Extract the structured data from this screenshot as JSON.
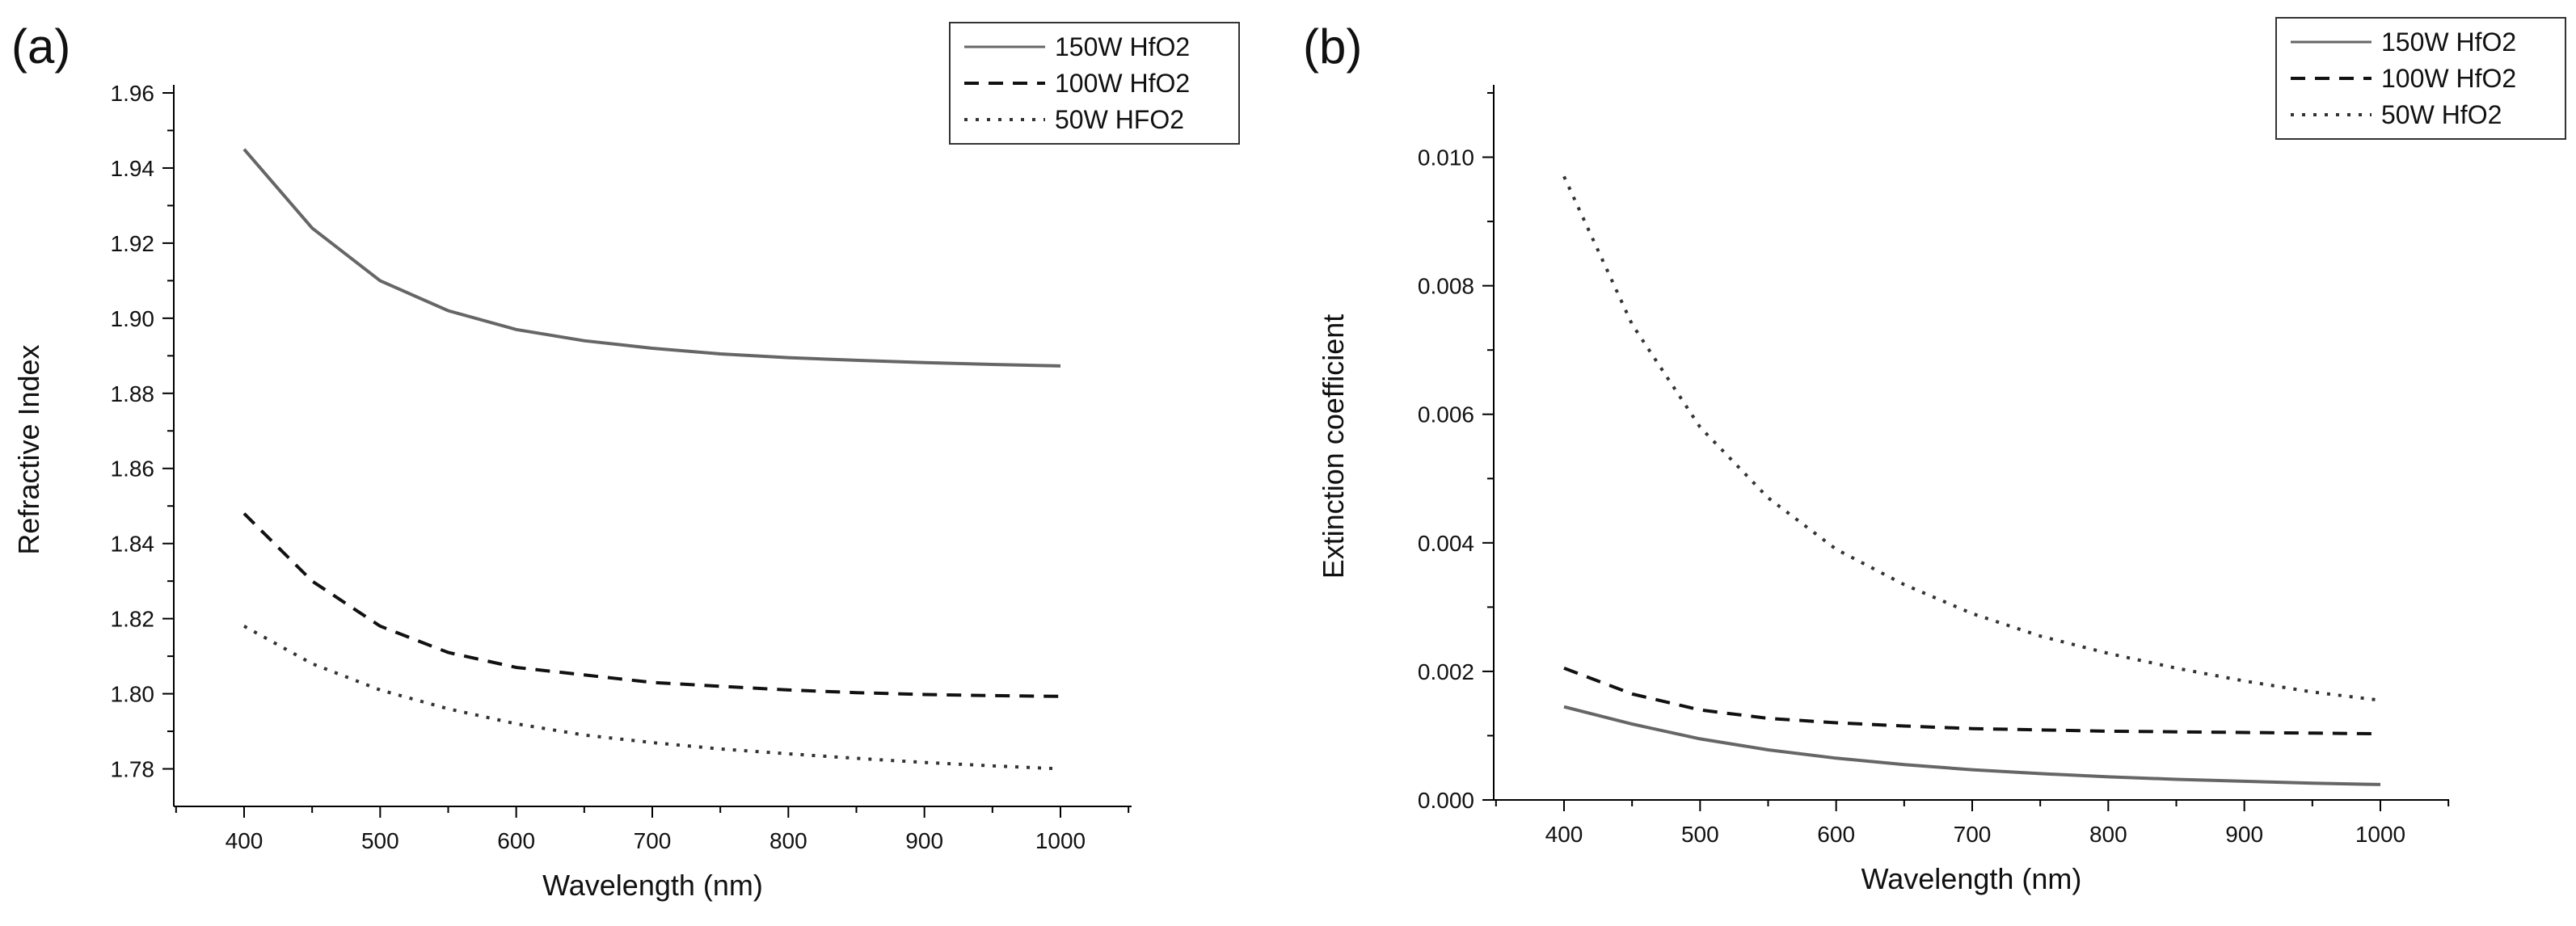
{
  "chart_data": [
    {
      "type": "line",
      "panel_label": "(a)",
      "xlabel": "Wavelength (nm)",
      "ylabel": "Refractive Index",
      "xlim": [
        350,
        1050
      ],
      "ylim": [
        1.77,
        1.96
      ],
      "xticks": [
        400,
        500,
        600,
        700,
        800,
        900,
        1000
      ],
      "xtick_labels": [
        "400",
        "500",
        "600",
        "700",
        "800",
        "900",
        "1000"
      ],
      "yticks": [
        1.78,
        1.8,
        1.82,
        1.84,
        1.86,
        1.88,
        1.9,
        1.92,
        1.94,
        1.96
      ],
      "ytick_labels": [
        "1.78",
        "1.80",
        "1.82",
        "1.84",
        "1.86",
        "1.88",
        "1.90",
        "1.92",
        "1.94",
        "1.96"
      ],
      "legend_position": "top-right",
      "x": [
        400,
        450,
        500,
        550,
        600,
        650,
        700,
        750,
        800,
        850,
        900,
        950,
        1000
      ],
      "series": [
        {
          "name": "150W HfO2",
          "style": "solid",
          "color": "#666666",
          "values": [
            1.945,
            1.924,
            1.91,
            1.902,
            1.897,
            1.894,
            1.892,
            1.8905,
            1.8895,
            1.8888,
            1.8882,
            1.8877,
            1.8873
          ]
        },
        {
          "name": "100W HfO2",
          "style": "dashed",
          "color": "#111111",
          "values": [
            1.848,
            1.83,
            1.818,
            1.811,
            1.807,
            1.805,
            1.803,
            1.802,
            1.801,
            1.8003,
            1.7998,
            1.7995,
            1.7993
          ]
        },
        {
          "name": "50W   HFO2",
          "style": "dotted",
          "color": "#333333",
          "values": [
            1.818,
            1.808,
            1.801,
            1.796,
            1.792,
            1.789,
            1.787,
            1.7853,
            1.784,
            1.7828,
            1.7817,
            1.7808,
            1.78
          ]
        }
      ]
    },
    {
      "type": "line",
      "panel_label": "(b)",
      "xlabel": "Wavelength (nm)",
      "ylabel": "Extinction coefficient",
      "xlim": [
        350,
        1050
      ],
      "ylim": [
        0.0,
        0.011
      ],
      "xticks": [
        400,
        500,
        600,
        700,
        800,
        900,
        1000
      ],
      "xtick_labels": [
        "400",
        "500",
        "600",
        "700",
        "800",
        "900",
        "1000"
      ],
      "yticks": [
        0.0,
        0.002,
        0.004,
        0.006,
        0.008,
        0.01
      ],
      "ytick_labels": [
        "0.000",
        "0.002",
        "0.004",
        "0.006",
        "0.008",
        "0.010"
      ],
      "legend_position": "top-right",
      "x": [
        400,
        450,
        500,
        550,
        600,
        650,
        700,
        750,
        800,
        850,
        900,
        950,
        1000
      ],
      "series": [
        {
          "name": "150W HfO2",
          "style": "solid",
          "color": "#666666",
          "values": [
            0.00145,
            0.00118,
            0.00095,
            0.00078,
            0.00065,
            0.00055,
            0.00047,
            0.00041,
            0.00036,
            0.00032,
            0.00029,
            0.00026,
            0.00024
          ]
        },
        {
          "name": "100W HfO2",
          "style": "dashed",
          "color": "#111111",
          "values": [
            0.00205,
            0.00165,
            0.0014,
            0.00127,
            0.0012,
            0.00115,
            0.00111,
            0.00109,
            0.00107,
            0.00106,
            0.00105,
            0.00104,
            0.00103
          ]
        },
        {
          "name": "50W HfO2",
          "style": "dotted",
          "color": "#333333",
          "values": [
            0.0097,
            0.0074,
            0.0058,
            0.0047,
            0.0039,
            0.00335,
            0.0029,
            0.00255,
            0.00228,
            0.00205,
            0.00185,
            0.00168,
            0.00155
          ]
        }
      ]
    }
  ]
}
